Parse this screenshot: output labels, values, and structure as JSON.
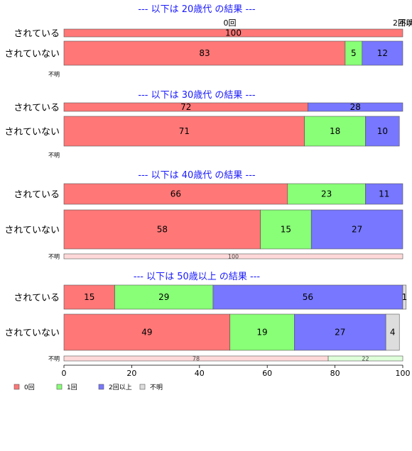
{
  "chart_data": {
    "type": "bar",
    "orientation": "horizontal",
    "stacked": "percent",
    "categories_legend": [
      "0回",
      "1回",
      "2回以上",
      "不明"
    ],
    "colors": [
      "#ff7777",
      "#88ff77",
      "#7777ff",
      "#dddddd"
    ],
    "xlim": [
      0,
      100
    ],
    "xticks": [
      "0",
      "20",
      "40",
      "60",
      "80",
      "100"
    ],
    "top_labels": [
      "0回",
      "2回以上",
      "不明"
    ],
    "panels": [
      {
        "title": "--- 以下は 20歳代 の結果 ---",
        "rows": [
          {
            "label": "されている",
            "values": [
              100,
              0,
              0,
              0
            ]
          },
          {
            "label": "されていない",
            "values": [
              83,
              5,
              12,
              0
            ]
          },
          {
            "label": "不明",
            "values": [
              0,
              0,
              0,
              0
            ]
          }
        ]
      },
      {
        "title": "--- 以下は 30歳代 の結果 ---",
        "rows": [
          {
            "label": "されている",
            "values": [
              72,
              0,
              28,
              0
            ]
          },
          {
            "label": "されていない",
            "values": [
              71,
              18,
              10,
              0
            ]
          },
          {
            "label": "不明",
            "values": [
              0,
              0,
              0,
              0
            ]
          }
        ]
      },
      {
        "title": "--- 以下は 40歳代 の結果 ---",
        "rows": [
          {
            "label": "されている",
            "values": [
              66,
              23,
              11,
              0
            ]
          },
          {
            "label": "されていない",
            "values": [
              58,
              15,
              27,
              0
            ]
          },
          {
            "label": "不明",
            "values": [
              100,
              0,
              0,
              0
            ]
          }
        ]
      },
      {
        "title": "--- 以下は 50歳以上 の結果 ---",
        "rows": [
          {
            "label": "されている",
            "values": [
              15,
              29,
              56,
              1
            ]
          },
          {
            "label": "されていない",
            "values": [
              49,
              19,
              27,
              4
            ]
          },
          {
            "label": "不明",
            "values": [
              78,
              22,
              0,
              0
            ]
          }
        ]
      }
    ]
  }
}
